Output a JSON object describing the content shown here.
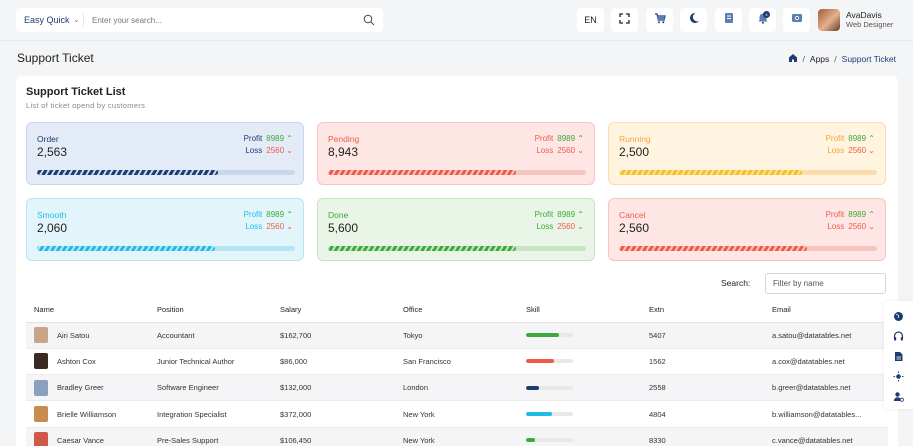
{
  "search": {
    "scope_label": "Easy Quick",
    "placeholder": "Enter your search..."
  },
  "header": {
    "lang": "EN",
    "notification_count": "4"
  },
  "user": {
    "name": "AvaDavis",
    "role": "Web Designer"
  },
  "page": {
    "title": "Support Ticket"
  },
  "breadcrumb": {
    "items": [
      "Apps",
      "Support Ticket"
    ]
  },
  "card": {
    "title": "Support Ticket List",
    "subtitle": "List of ticket opend by customers"
  },
  "stats": [
    {
      "label": "Order",
      "value": "2,563",
      "profit_label": "Profit",
      "profit": "8989",
      "loss_label": "Loss",
      "loss": "2560",
      "progress": 0.7,
      "color": "#1b3d72",
      "bg": "#e3ebf6",
      "border": "#c8d7ec",
      "label_color": "#1b3d72"
    },
    {
      "label": "Pending",
      "value": "8,943",
      "profit_label": "Profit",
      "profit": "8989",
      "loss_label": "Loss",
      "loss": "2560",
      "progress": 0.73,
      "color": "#ef5b4b",
      "bg": "#fde6e4",
      "border": "#f6c5bf",
      "label_color": "#ef5b4b"
    },
    {
      "label": "Running",
      "value": "2,500",
      "profit_label": "Profit",
      "profit": "8989",
      "loss_label": "Loss",
      "loss": "2560",
      "progress": 0.71,
      "color": "#f7c21b",
      "bg": "#fff4e0",
      "border": "#fbdcaa",
      "label_color": "#f4a53b"
    },
    {
      "label": "Smooth",
      "value": "2,060",
      "profit_label": "Profit",
      "profit": "8989",
      "loss_label": "Loss",
      "loss": "2560",
      "progress": 0.69,
      "color": "#1ebce6",
      "bg": "#e2f5fb",
      "border": "#b9e4f3",
      "label_color": "#1ebce6"
    },
    {
      "label": "Done",
      "value": "5,600",
      "profit_label": "Profit",
      "profit": "8989",
      "loss_label": "Loss",
      "loss": "2560",
      "progress": 0.73,
      "color": "#3dab3b",
      "bg": "#e9f5e6",
      "border": "#c7e4c1",
      "label_color": "#3dab3b"
    },
    {
      "label": "Cancel",
      "value": "2,560",
      "profit_label": "Profit",
      "profit": "8989",
      "loss_label": "Loss",
      "loss": "2560",
      "progress": 0.73,
      "color": "#ef5b4b",
      "bg": "#fde6e4",
      "border": "#f6c5bf",
      "label_color": "#ef5b4b"
    }
  ],
  "profit_color": "#3dab3b",
  "loss_color": "#ef5b4b",
  "table": {
    "search_label": "Search:",
    "search_placeholder": "Filter by name",
    "columns": [
      "Name",
      "Position",
      "Salary",
      "Office",
      "Skill",
      "Extn",
      "Email"
    ],
    "rows": [
      {
        "name": "Airi Satou",
        "position": "Accountant",
        "salary": "$162,700",
        "office": "Tokyo",
        "skill": 0.7,
        "skill_color": "#3dab3b",
        "extn": "5407",
        "email": "a.satou@datatables.net"
      },
      {
        "name": "Ashton Cox",
        "position": "Junior Technical Author",
        "salary": "$86,000",
        "office": "San Francisco",
        "skill": 0.6,
        "skill_color": "#ef5b4b",
        "extn": "1562",
        "email": "a.cox@datatables.net"
      },
      {
        "name": "Bradley Greer",
        "position": "Software Engineer",
        "salary": "$132,000",
        "office": "London",
        "skill": 0.28,
        "skill_color": "#1b3d72",
        "extn": "2558",
        "email": "b.greer@datatables.net"
      },
      {
        "name": "Brielle Williamson",
        "position": "Integration Specialist",
        "salary": "$372,000",
        "office": "New York",
        "skill": 0.55,
        "skill_color": "#1ebce6",
        "extn": "4804",
        "email": "b.williamson@datatables..."
      },
      {
        "name": "Caesar Vance",
        "position": "Pre-Sales Support",
        "salary": "$106,450",
        "office": "New York",
        "skill": 0.2,
        "skill_color": "#3dab3b",
        "extn": "8330",
        "email": "c.vance@datatables.net"
      }
    ]
  },
  "icons": {
    "search": "search-icon",
    "fullscreen": "fullscreen-icon",
    "cart": "cart-icon",
    "theme": "moon-icon",
    "bookmark": "bookmark-icon",
    "notification": "bell-icon",
    "settings": "settings-icon",
    "home": "home-icon",
    "side": [
      "globe-icon",
      "headset-icon",
      "document-icon",
      "dark-mode-icon",
      "user-settings-icon"
    ]
  }
}
